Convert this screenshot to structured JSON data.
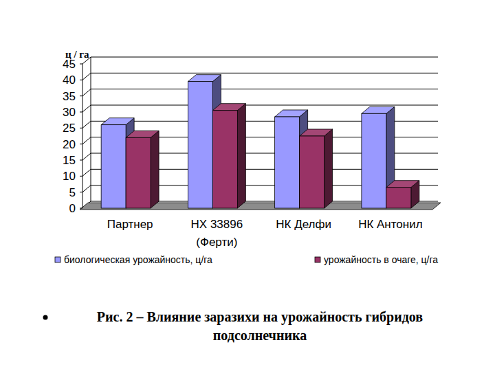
{
  "chart_data": {
    "type": "bar",
    "title": "Рис. 2 – Влияние заразихи на урожайность гибридов подсолнечника",
    "y_label": "ц / га",
    "categories": [
      "Партнер",
      "НХ 33896 (Ферти)",
      "НК Делфи",
      "НК Антонил"
    ],
    "series": [
      {
        "name": "биологическая урожайность, ц/га",
        "color": "#9999ff",
        "values": [
          26,
          39.5,
          28.5,
          29.5
        ]
      },
      {
        "name": "урожайность в очаге, ц/га",
        "color": "#993366",
        "values": [
          22,
          30.5,
          22.5,
          6.5
        ]
      }
    ],
    "ylim": [
      0,
      45
    ],
    "yticks": [
      0,
      5,
      10,
      15,
      20,
      25,
      30,
      35,
      40,
      45
    ],
    "grid": true,
    "legend": "bottom"
  }
}
